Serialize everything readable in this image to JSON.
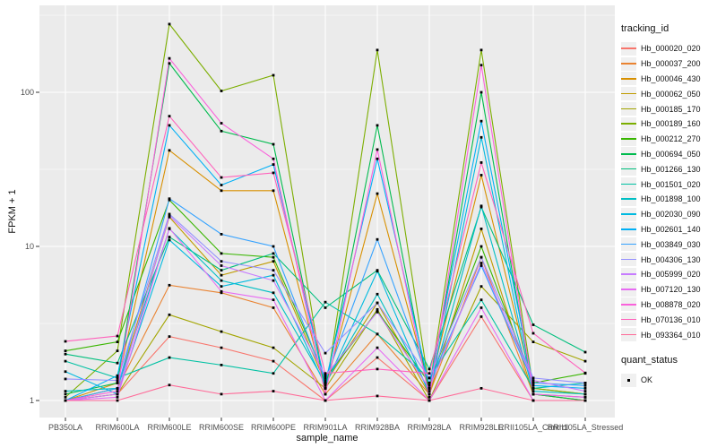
{
  "chart_data": {
    "type": "line",
    "title": "",
    "xlabel": "sample_name",
    "ylabel": "FPKM + 1",
    "x_categories": [
      "PB350LA",
      "RRIM600LA",
      "RRIM600LE",
      "RRIM600SE",
      "RRIM600PE",
      "RRIM901LA",
      "RRIM928BA",
      "RRIM928LA",
      "RRIM928LE",
      "RRII105LA_Control",
      "RRII105LA_Stressed"
    ],
    "y_axis": {
      "scale": "log10",
      "tick_values": [
        1,
        10,
        100
      ],
      "tick_labels": [
        "1",
        "10",
        "100"
      ],
      "minor_tick_values": [
        3.162,
        31.62,
        316.2
      ],
      "range_approx": [
        0.78,
        370
      ]
    },
    "legend_title": "tracking_id",
    "legend_position": "right",
    "grid": true,
    "point_marker": "small black square",
    "point_legend": {
      "title": "quant_status",
      "items": [
        {
          "label": "OK",
          "color": "#000000"
        }
      ]
    },
    "style": {
      "panel_bg": "#EBEBEB",
      "grid_major": "#FFFFFF",
      "grid_minor": "#F7F7F7",
      "point_color": "#000000",
      "tick_mark_color": "#333333",
      "tick_text_color": "#4D4D4D",
      "axis_title_color": "#111111"
    },
    "series": [
      {
        "name": "Hb_000020_020",
        "color": "#F8766D",
        "values": [
          1.0,
          1.1,
          2.6,
          2.2,
          1.8,
          1.0,
          1.9,
          1.0,
          3.5,
          1.0,
          1.0
        ]
      },
      {
        "name": "Hb_000037_200",
        "color": "#EA8331",
        "values": [
          1.0,
          1.2,
          5.6,
          5.0,
          4.0,
          1.1,
          2.7,
          1.1,
          8.5,
          1.1,
          1.0
        ]
      },
      {
        "name": "Hb_000046_430",
        "color": "#D89000",
        "values": [
          1.0,
          1.3,
          42,
          23,
          23,
          1.2,
          22,
          1.2,
          29,
          1.2,
          1.1
        ]
      },
      {
        "name": "Hb_000062_050",
        "color": "#C09B00",
        "values": [
          1.0,
          1.2,
          15.5,
          6.5,
          8.0,
          1.3,
          4.3,
          1.1,
          13,
          1.1,
          1.0
        ]
      },
      {
        "name": "Hb_000185_170",
        "color": "#A3A500",
        "values": [
          1.0,
          1.1,
          3.6,
          2.8,
          2.2,
          1.2,
          3.9,
          1.0,
          5.5,
          2.4,
          1.8
        ]
      },
      {
        "name": "Hb_000189_160",
        "color": "#7CAE00",
        "values": [
          1.05,
          2.1,
          277,
          102,
          129,
          1.1,
          188,
          1.2,
          188,
          1.2,
          1.1
        ]
      },
      {
        "name": "Hb_000212_270",
        "color": "#39B600",
        "values": [
          2.1,
          2.4,
          20,
          9.0,
          8.5,
          1.4,
          3.8,
          1.3,
          10,
          1.3,
          1.5
        ]
      },
      {
        "name": "Hb_000694_050",
        "color": "#00BB4E",
        "values": [
          1.1,
          1.3,
          154,
          56,
          46,
          1.2,
          61,
          1.1,
          100,
          1.1,
          1.0
        ]
      },
      {
        "name": "Hb_001266_130",
        "color": "#00BF7D",
        "values": [
          2.0,
          1.75,
          11.5,
          7.0,
          9.0,
          4.0,
          7.0,
          1.6,
          18,
          3.1,
          2.06
        ]
      },
      {
        "name": "Hb_001501_020",
        "color": "#00C1A3",
        "values": [
          1.8,
          1.4,
          1.9,
          1.7,
          1.5,
          4.35,
          2.7,
          1.4,
          4.5,
          1.2,
          1.3
        ]
      },
      {
        "name": "Hb_001898_100",
        "color": "#00BFC4",
        "values": [
          1.15,
          1.2,
          13,
          6.0,
          5.0,
          1.3,
          4.9,
          1.15,
          18.3,
          1.15,
          1.1
        ]
      },
      {
        "name": "Hb_002030_090",
        "color": "#00BAE0",
        "values": [
          1.54,
          1.1,
          11,
          5.5,
          6.5,
          1.25,
          6.9,
          1.1,
          51,
          1.1,
          1.05
        ]
      },
      {
        "name": "Hb_002601_140",
        "color": "#00B0F6",
        "values": [
          1.0,
          1.45,
          61,
          25,
          34,
          1.3,
          37,
          1.25,
          65,
          1.25,
          1.2
        ]
      },
      {
        "name": "Hb_003849_030",
        "color": "#35A2FF",
        "values": [
          1.0,
          1.2,
          20.4,
          12,
          10,
          1.35,
          11.1,
          1.3,
          7.5,
          1.3,
          1.25
        ]
      },
      {
        "name": "Hb_004306_130",
        "color": "#9590FF",
        "values": [
          1.38,
          1.35,
          16.2,
          8.0,
          7.0,
          2.03,
          4.3,
          1.4,
          8.5,
          1.4,
          1.3
        ]
      },
      {
        "name": "Hb_005999_020",
        "color": "#C77CFF",
        "values": [
          1.0,
          1.1,
          15.8,
          7.5,
          6.0,
          1.45,
          3.75,
          1.2,
          7.8,
          1.35,
          1.15
        ]
      },
      {
        "name": "Hb_007120_130",
        "color": "#E76BF3",
        "values": [
          1.0,
          1.05,
          13.1,
          5.1,
          4.5,
          1.0,
          2.2,
          1.0,
          4.0,
          1.0,
          1.0
        ]
      },
      {
        "name": "Hb_008878_020",
        "color": "#FA62DB",
        "values": [
          1.0,
          1.15,
          166,
          63,
          37,
          1.1,
          42.5,
          1.05,
          150,
          1.1,
          1.05
        ]
      },
      {
        "name": "Hb_070136_010",
        "color": "#FF62BC",
        "values": [
          2.42,
          2.62,
          70,
          28,
          30,
          1.5,
          1.6,
          1.5,
          35,
          2.73,
          1.51
        ]
      },
      {
        "name": "Hb_093364_010",
        "color": "#FF6A98",
        "values": [
          1.0,
          1.0,
          1.26,
          1.1,
          1.15,
          1.0,
          1.07,
          1.0,
          1.2,
          1.0,
          1.0
        ]
      }
    ]
  }
}
